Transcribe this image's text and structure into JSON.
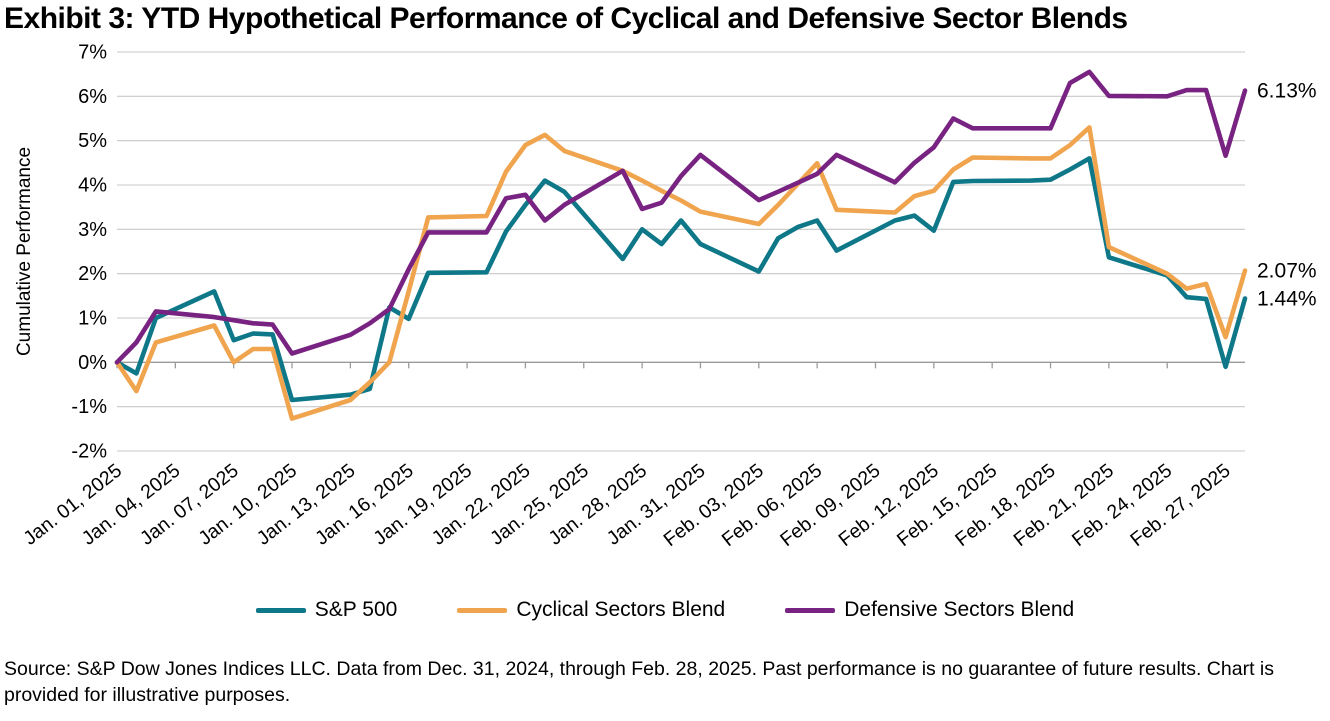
{
  "title": "Exhibit 3: YTD Hypothetical Performance of Cyclical and Defensive Sector Blends",
  "source": "Source: S&P Dow Jones Indices LLC. Data from Dec. 31, 2024, through Feb. 28, 2025. Past performance is no guarantee of future results. Chart is provided for illustrative purposes.",
  "chart_data": {
    "type": "line",
    "title": "Exhibit 3: YTD Hypothetical Performance of Cyclical and Defensive Sector Blends",
    "xlabel": "",
    "ylabel": "Cumulative Performance",
    "ylim": [
      -2,
      7
    ],
    "grid": true,
    "legend_position": "bottom",
    "y_tick_values": [
      7,
      6,
      5,
      4,
      3,
      2,
      1,
      0,
      -1,
      -2
    ],
    "y_tick_labels": [
      "7%",
      "6%",
      "5%",
      "4%",
      "3%",
      "2%",
      "1%",
      "0%",
      "-1%",
      "-2%"
    ],
    "x_tick_days": [
      0,
      3,
      6,
      9,
      12,
      15,
      18,
      21,
      24,
      27,
      30,
      33,
      36,
      39,
      42,
      45,
      48,
      51,
      54,
      57
    ],
    "x_tick_labels": [
      "Jan. 01, 2025",
      "Jan. 04, 2025",
      "Jan. 07, 2025",
      "Jan. 10, 2025",
      "Jan. 13, 2025",
      "Jan. 16, 2025",
      "Jan. 19, 2025",
      "Jan. 22, 2025",
      "Jan. 25, 2025",
      "Jan. 28, 2025",
      "Jan. 31, 2025",
      "Feb. 03, 2025",
      "Feb. 06, 2025",
      "Feb. 09, 2025",
      "Feb. 12, 2025",
      "Feb. 15, 2025",
      "Feb. 18, 2025",
      "Feb. 21, 2025",
      "Feb. 24, 2025",
      "Feb. 27, 2025"
    ],
    "dates": [
      "Jan. 01",
      "Jan. 02",
      "Jan. 03",
      "Jan. 06",
      "Jan. 07",
      "Jan. 08",
      "Jan. 09",
      "Jan. 10",
      "Jan. 13",
      "Jan. 14",
      "Jan. 15",
      "Jan. 16",
      "Jan. 17",
      "Jan. 20",
      "Jan. 21",
      "Jan. 22",
      "Jan. 23",
      "Jan. 24",
      "Jan. 27",
      "Jan. 28",
      "Jan. 29",
      "Jan. 30",
      "Jan. 31",
      "Feb. 03",
      "Feb. 04",
      "Feb. 05",
      "Feb. 06",
      "Feb. 07",
      "Feb. 10",
      "Feb. 11",
      "Feb. 12",
      "Feb. 13",
      "Feb. 14",
      "Feb. 17",
      "Feb. 18",
      "Feb. 19",
      "Feb. 20",
      "Feb. 21",
      "Feb. 24",
      "Feb. 25",
      "Feb. 26",
      "Feb. 27",
      "Feb. 28"
    ],
    "days": [
      0,
      1,
      2,
      5,
      6,
      7,
      8,
      9,
      12,
      13,
      14,
      15,
      16,
      19,
      20,
      21,
      22,
      23,
      26,
      27,
      28,
      29,
      30,
      33,
      34,
      35,
      36,
      37,
      40,
      41,
      42,
      43,
      44,
      47,
      48,
      49,
      50,
      51,
      54,
      55,
      56,
      57,
      58
    ],
    "series": [
      {
        "name": "S&P 500",
        "color": "#0E7889",
        "end_label": "1.44%",
        "end_value": 1.44,
        "values": [
          0.0,
          -0.25,
          1.0,
          1.6,
          0.5,
          0.65,
          0.63,
          -0.85,
          -0.73,
          -0.6,
          1.24,
          0.98,
          2.02,
          2.03,
          2.95,
          3.55,
          4.1,
          3.85,
          2.33,
          3.0,
          2.67,
          3.2,
          2.67,
          2.05,
          2.8,
          3.05,
          3.2,
          2.52,
          3.2,
          3.31,
          2.97,
          4.07,
          4.09,
          4.1,
          4.12,
          4.35,
          4.6,
          2.37,
          1.96,
          1.47,
          1.43,
          -0.1,
          1.44
        ]
      },
      {
        "name": "Cyclical Sectors Blend",
        "color": "#F0A44E",
        "end_label": "2.07%",
        "end_value": 2.07,
        "values": [
          0.0,
          -0.65,
          0.45,
          0.83,
          0.0,
          0.3,
          0.3,
          -1.27,
          -0.85,
          -0.45,
          0.0,
          1.6,
          3.27,
          3.3,
          4.3,
          4.9,
          5.13,
          4.77,
          4.32,
          4.1,
          3.87,
          3.65,
          3.4,
          3.12,
          3.55,
          4.02,
          4.49,
          3.44,
          3.38,
          3.75,
          3.87,
          4.35,
          4.62,
          4.6,
          4.6,
          4.9,
          5.3,
          2.6,
          2.0,
          1.66,
          1.77,
          0.57,
          2.07
        ]
      },
      {
        "name": "Defensive Sectors Blend",
        "color": "#782382",
        "end_label": "6.13%",
        "end_value": 6.13,
        "values": [
          0.0,
          0.45,
          1.15,
          1.02,
          0.95,
          0.88,
          0.85,
          0.2,
          0.62,
          0.88,
          1.2,
          2.1,
          2.93,
          2.93,
          3.7,
          3.78,
          3.2,
          3.55,
          4.32,
          3.46,
          3.6,
          4.2,
          4.68,
          3.66,
          3.85,
          4.05,
          4.25,
          4.68,
          4.06,
          4.5,
          4.85,
          5.5,
          5.28,
          5.28,
          5.28,
          6.3,
          6.55,
          6.01,
          6.0,
          6.14,
          6.14,
          4.66,
          6.13
        ]
      }
    ],
    "colors": {
      "gridline": "#C8C8C8",
      "axis": "#9A9A9A",
      "text": "#000000"
    }
  }
}
